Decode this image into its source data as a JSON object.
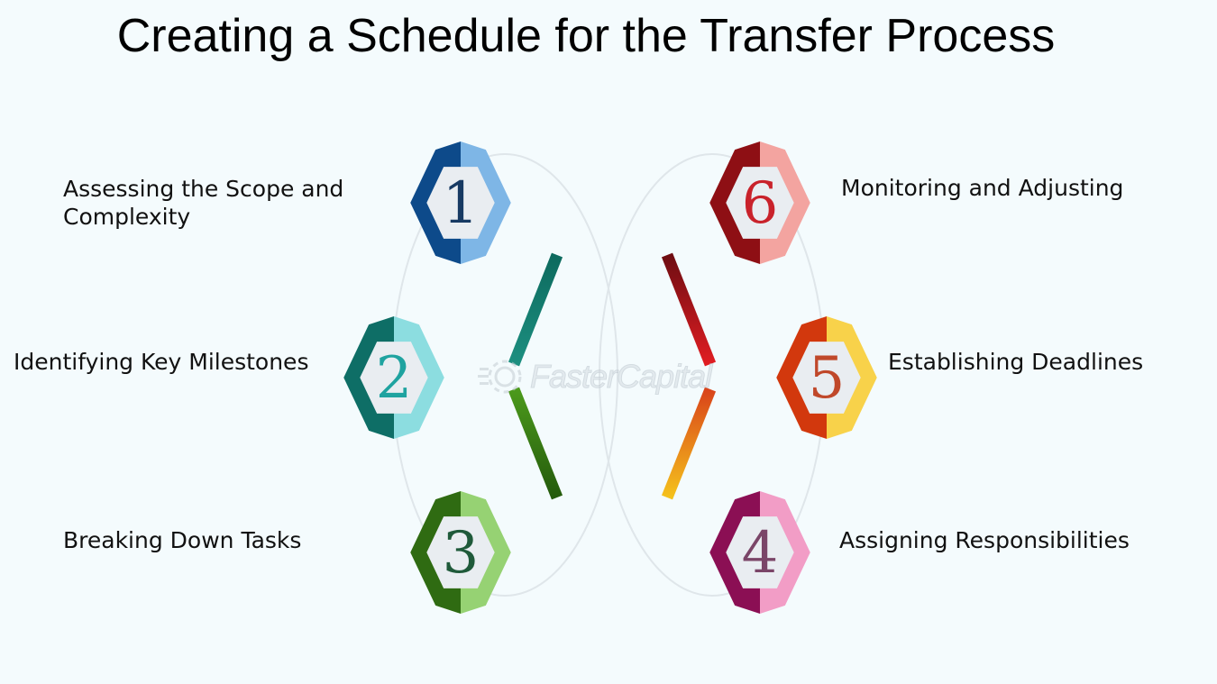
{
  "title": "Creating a Schedule for the Transfer Process",
  "steps": [
    {
      "number": "1",
      "label": "Assessing the Scope and Complexity",
      "color_dark": "#0d4a8a",
      "color_light": "#7eb6e6",
      "num_color": "#173a63"
    },
    {
      "number": "2",
      "label": "Identifying Key Milestones",
      "color_dark": "#0e6e66",
      "color_light": "#8cdde0",
      "num_color": "#1fa3a0"
    },
    {
      "number": "3",
      "label": "Breaking Down Tasks",
      "color_dark": "#2f6b12",
      "color_light": "#96d273",
      "num_color": "#1f5a3a"
    },
    {
      "number": "4",
      "label": "Assigning Responsibilities",
      "color_dark": "#8b0f54",
      "color_light": "#f29dc6",
      "num_color": "#7a4568"
    },
    {
      "number": "5",
      "label": "Establishing Deadlines",
      "color_dark": "#d2380d",
      "color_light": "#f8d24a",
      "num_color": "#c0482a"
    },
    {
      "number": "6",
      "label": "Monitoring and Adjusting",
      "color_dark": "#8e0f14",
      "color_light": "#f3a4a0",
      "num_color": "#c9222b"
    }
  ],
  "watermark": {
    "text": "FasterCapital",
    "icon": "gear-icon"
  },
  "ring_colors": {
    "top": "#0d4a8a",
    "upper_right": "#b0141c",
    "lower_right": "#e58a0a",
    "bottom": "#c2267a",
    "lower_left": "#3d7d16",
    "upper_left": "#0f7a6e"
  }
}
